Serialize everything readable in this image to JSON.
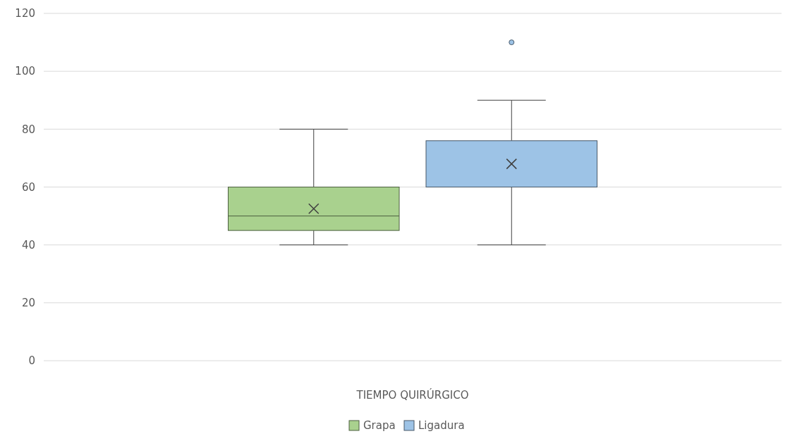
{
  "chart_data": {
    "type": "box",
    "categories": [
      null
    ],
    "xlabel": "TIEMPO QUIRÚRGICO",
    "series": [
      {
        "name": "Grapa",
        "color": "#a9d18e",
        "boxes": [
          {
            "low": 40,
            "q1": 45,
            "median": 50,
            "q3": 60,
            "high": 80,
            "mean": 52.5
          }
        ]
      },
      {
        "name": "Ligadura",
        "color": "#9dc3e6",
        "boxes": [
          {
            "low": 40,
            "q1": 60,
            "median": 60,
            "q3": 76,
            "high": 90,
            "mean": 68,
            "outliers": [
              110
            ]
          }
        ]
      }
    ],
    "ylim": [
      0,
      120
    ],
    "yticks": [
      0,
      20,
      40,
      60,
      80,
      100,
      120
    ],
    "grid": "y",
    "legend": "bottom"
  }
}
